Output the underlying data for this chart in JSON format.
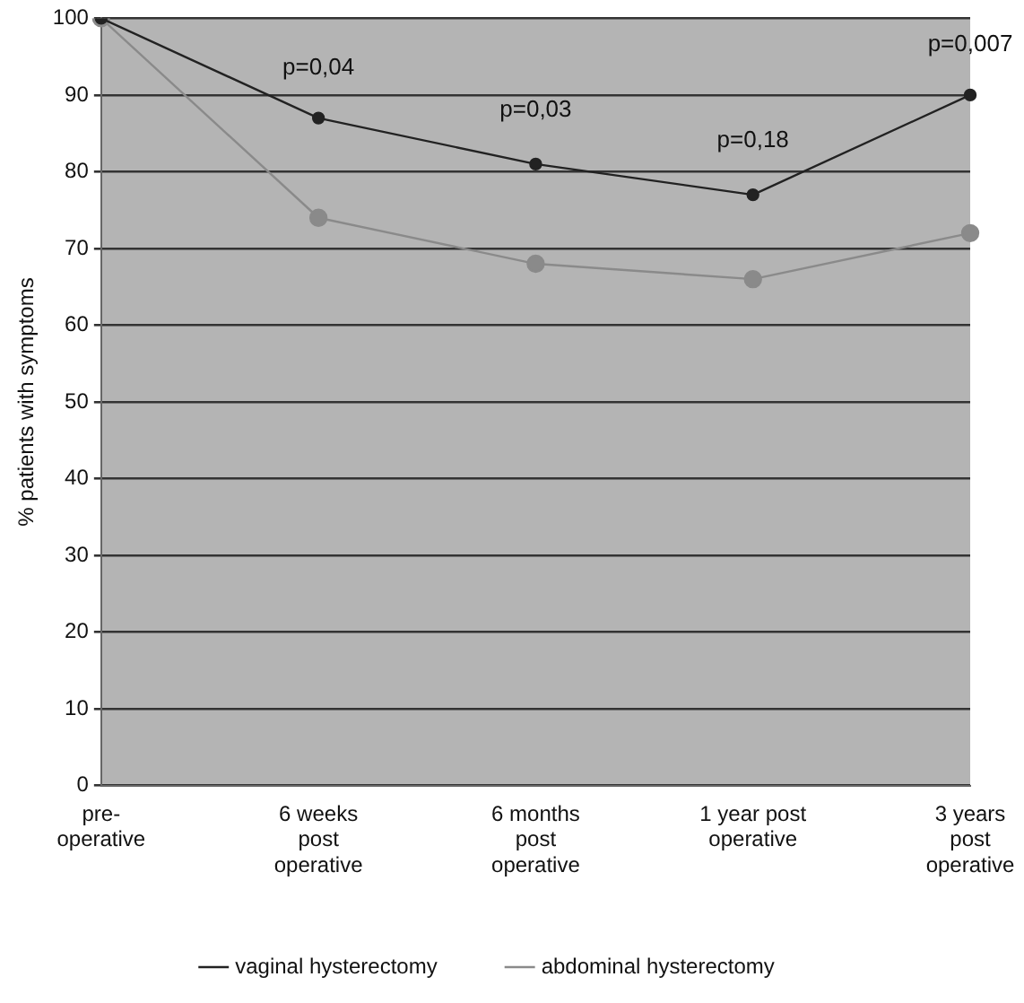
{
  "chart_data": {
    "type": "line",
    "ylabel": "% patients with symptoms",
    "categories": [
      "pre-\noperative",
      "6 weeks\npost\noperative",
      "6 months\npost\noperative",
      "1 year post\noperative",
      "3 years\npost\noperative"
    ],
    "series": [
      {
        "name": "vaginal hysterectomy",
        "color": "#222222",
        "values": [
          100,
          87,
          81,
          77,
          90
        ]
      },
      {
        "name": "abdominal hysterectomy",
        "color": "#8a8a8a",
        "values": [
          100,
          74,
          68,
          66,
          72
        ]
      }
    ],
    "ylim": [
      0,
      100
    ],
    "yticks": [
      0,
      10,
      20,
      30,
      40,
      50,
      60,
      70,
      80,
      90,
      100
    ],
    "grid": "y",
    "legend": "bottom",
    "marker": "circle",
    "line_style": "solid",
    "annotations": [
      "p=0,04",
      "p=0,03",
      "p=0,18",
      "p=0,007"
    ]
  }
}
